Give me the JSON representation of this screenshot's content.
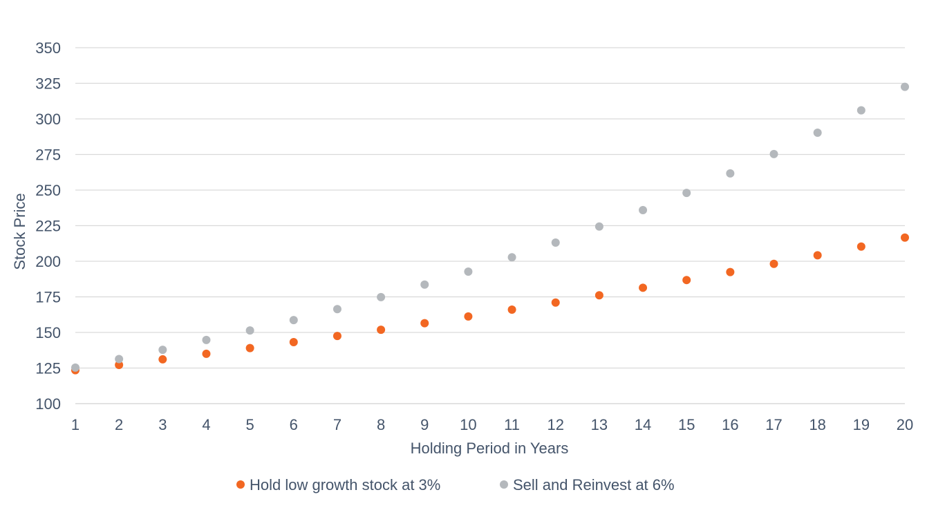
{
  "chart_data": {
    "type": "scatter",
    "title": "",
    "xlabel": "Holding Period in Years",
    "ylabel": "Stock Price",
    "xlim": [
      1,
      20
    ],
    "ylim": [
      100,
      350
    ],
    "x_ticks": [
      1,
      2,
      3,
      4,
      5,
      6,
      7,
      8,
      9,
      10,
      11,
      12,
      13,
      14,
      15,
      16,
      17,
      18,
      19,
      20
    ],
    "y_ticks": [
      100,
      125,
      150,
      175,
      200,
      225,
      250,
      275,
      300,
      325,
      350
    ],
    "grid": "horizontal",
    "legend_position": "bottom",
    "series": [
      {
        "name": "Hold low growth stock at 3%",
        "color": "#f26722",
        "x": [
          1,
          2,
          3,
          4,
          5,
          6,
          7,
          8,
          9,
          10,
          11,
          12,
          13,
          14,
          15,
          16,
          17,
          18,
          19,
          20
        ],
        "y": [
          123.5,
          127.2,
          131.1,
          135.0,
          139.0,
          143.2,
          147.5,
          151.9,
          156.5,
          161.2,
          166.0,
          171.0,
          176.1,
          181.4,
          186.8,
          192.4,
          198.2,
          204.2,
          210.3,
          216.6
        ]
      },
      {
        "name": "Sell and Reinvest at 6%",
        "color": "#b4b8bc",
        "x": [
          1,
          2,
          3,
          4,
          5,
          6,
          7,
          8,
          9,
          10,
          11,
          12,
          13,
          14,
          15,
          16,
          17,
          18,
          19,
          20
        ],
        "y": [
          125.3,
          131.3,
          137.8,
          144.7,
          151.4,
          158.7,
          166.4,
          174.8,
          183.6,
          192.7,
          202.8,
          213.1,
          224.4,
          235.9,
          248.0,
          261.7,
          275.3,
          290.3,
          306.0,
          322.5
        ]
      }
    ]
  }
}
